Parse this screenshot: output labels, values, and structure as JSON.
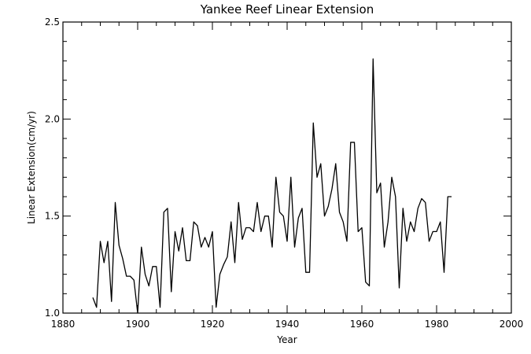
{
  "chart_data": {
    "type": "line",
    "title": "Yankee Reef Linear Extension",
    "xlabel": "Year",
    "ylabel": "Linear Extension(cm/yr)",
    "xlim": [
      1880,
      2000
    ],
    "ylim": [
      1.0,
      2.5
    ],
    "x_ticks": [
      1880,
      1900,
      1920,
      1940,
      1960,
      1980,
      2000
    ],
    "x_tick_labels": [
      "1880",
      "1900",
      "1920",
      "1940",
      "1960",
      "1980",
      "2000"
    ],
    "y_ticks": [
      1.0,
      1.5,
      2.0,
      2.5
    ],
    "y_tick_labels": [
      "1.0",
      "1.5",
      "2.0",
      "2.5"
    ],
    "x_minor_step": 5,
    "y_minor_step": 0.1,
    "grid": false,
    "series": [
      {
        "x": [
          1888,
          1889,
          1890,
          1891,
          1892,
          1893,
          1894,
          1895,
          1896,
          1897,
          1898,
          1899,
          1900,
          1901,
          1902,
          1903,
          1904,
          1905,
          1906,
          1907,
          1908,
          1909,
          1910,
          1911,
          1912,
          1913,
          1914,
          1915,
          1916,
          1917,
          1918,
          1919,
          1920,
          1921,
          1922,
          1923,
          1924,
          1925,
          1926,
          1927,
          1928,
          1929,
          1930,
          1931,
          1932,
          1933,
          1934,
          1935,
          1936,
          1937,
          1938,
          1939,
          1940,
          1941,
          1942,
          1943,
          1944,
          1945,
          1946,
          1947,
          1948,
          1949,
          1950,
          1951,
          1952,
          1953,
          1954,
          1955,
          1956,
          1957,
          1958,
          1959,
          1960,
          1961,
          1962,
          1963,
          1964,
          1965,
          1966,
          1967,
          1968,
          1969,
          1970,
          1971,
          1972,
          1973,
          1974,
          1975,
          1976,
          1977,
          1978,
          1979,
          1980,
          1981,
          1982,
          1983,
          1984
        ],
        "y": [
          1.08,
          1.03,
          1.37,
          1.26,
          1.37,
          1.06,
          1.57,
          1.35,
          1.28,
          1.19,
          1.19,
          1.17,
          1.0,
          1.34,
          1.2,
          1.14,
          1.24,
          1.24,
          1.03,
          1.52,
          1.54,
          1.11,
          1.42,
          1.32,
          1.44,
          1.27,
          1.27,
          1.47,
          1.45,
          1.34,
          1.39,
          1.34,
          1.42,
          1.03,
          1.2,
          1.25,
          1.29,
          1.47,
          1.26,
          1.57,
          1.38,
          1.44,
          1.44,
          1.42,
          1.57,
          1.42,
          1.5,
          1.5,
          1.34,
          1.7,
          1.52,
          1.5,
          1.37,
          1.7,
          1.34,
          1.49,
          1.54,
          1.21,
          1.21,
          1.98,
          1.7,
          1.77,
          1.5,
          1.55,
          1.64,
          1.77,
          1.52,
          1.47,
          1.37,
          1.88,
          1.88,
          1.42,
          1.44,
          1.16,
          1.14,
          2.31,
          1.62,
          1.67,
          1.34,
          1.47,
          1.7,
          1.6,
          1.13,
          1.54,
          1.37,
          1.47,
          1.42,
          1.54,
          1.59,
          1.57,
          1.37,
          1.42,
          1.42,
          1.47,
          1.21,
          1.6,
          1.6
        ]
      }
    ]
  }
}
